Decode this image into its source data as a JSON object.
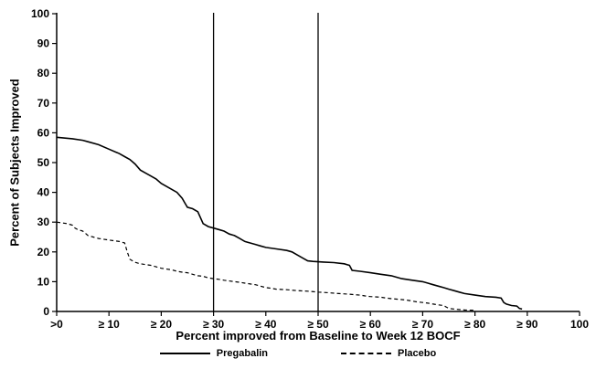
{
  "chart_data": {
    "type": "line",
    "title": "",
    "xlabel": "Percent improved from Baseline to Week 12 BOCF",
    "ylabel": "Percent of Subjects Improved",
    "xlim": [
      0,
      100
    ],
    "ylim": [
      0,
      100
    ],
    "grid": false,
    "legend_position": "bottom",
    "x_tick_values": [
      0,
      10,
      20,
      30,
      40,
      50,
      60,
      70,
      80,
      90,
      100
    ],
    "x_tick_labels": [
      ">0",
      "≥ 10",
      "≥ 20",
      "≥ 30",
      "≥ 40",
      "≥ 50",
      "≥ 60",
      "≥ 70",
      "≥ 80",
      "≥ 90",
      "100"
    ],
    "y_tick_values": [
      0,
      10,
      20,
      30,
      40,
      50,
      60,
      70,
      80,
      90,
      100
    ],
    "reference_lines_x": [
      30,
      50
    ],
    "axis_color": "#000000",
    "series": [
      {
        "name": "Pregabalin",
        "style": "solid",
        "color": "#000000",
        "points": [
          [
            0,
            58.5
          ],
          [
            3,
            58
          ],
          [
            5,
            57.5
          ],
          [
            6,
            57
          ],
          [
            8,
            56
          ],
          [
            10,
            54.5
          ],
          [
            12,
            53
          ],
          [
            13,
            52
          ],
          [
            14,
            51
          ],
          [
            15,
            49.5
          ],
          [
            16,
            47.5
          ],
          [
            17,
            46.5
          ],
          [
            18,
            45.5
          ],
          [
            19,
            44.5
          ],
          [
            20,
            43
          ],
          [
            21,
            42
          ],
          [
            22,
            41
          ],
          [
            23,
            40
          ],
          [
            24,
            38
          ],
          [
            24.5,
            36.5
          ],
          [
            25,
            35
          ],
          [
            26,
            34.5
          ],
          [
            27,
            33.5
          ],
          [
            27.5,
            31.5
          ],
          [
            28,
            29.5
          ],
          [
            29,
            28.5
          ],
          [
            30,
            28
          ],
          [
            31,
            27.5
          ],
          [
            32,
            27
          ],
          [
            33,
            26
          ],
          [
            34,
            25.5
          ],
          [
            35,
            24.5
          ],
          [
            36,
            23.5
          ],
          [
            37,
            23
          ],
          [
            38,
            22.5
          ],
          [
            39,
            22
          ],
          [
            40,
            21.5
          ],
          [
            42,
            21
          ],
          [
            44,
            20.5
          ],
          [
            45,
            20
          ],
          [
            46,
            19
          ],
          [
            47,
            18
          ],
          [
            48,
            17
          ],
          [
            49,
            16.8
          ],
          [
            51,
            16.6
          ],
          [
            53,
            16.4
          ],
          [
            55,
            16
          ],
          [
            56,
            15.5
          ],
          [
            56.5,
            13.8
          ],
          [
            58,
            13.5
          ],
          [
            60,
            13
          ],
          [
            62,
            12.5
          ],
          [
            64,
            12
          ],
          [
            65,
            11.5
          ],
          [
            66,
            11
          ],
          [
            68,
            10.5
          ],
          [
            70,
            10
          ],
          [
            71,
            9.5
          ],
          [
            72,
            9
          ],
          [
            73,
            8.5
          ],
          [
            74,
            8
          ],
          [
            75,
            7.5
          ],
          [
            76,
            7
          ],
          [
            77,
            6.5
          ],
          [
            78,
            6
          ],
          [
            80,
            5.5
          ],
          [
            82,
            5
          ],
          [
            84,
            4.8
          ],
          [
            85,
            4.5
          ],
          [
            85.5,
            3
          ],
          [
            86,
            2.5
          ],
          [
            87,
            2
          ],
          [
            88,
            1.8
          ],
          [
            88.5,
            1
          ],
          [
            89,
            0.8
          ]
        ]
      },
      {
        "name": "Placebo",
        "style": "dashed",
        "color": "#000000",
        "points": [
          [
            0,
            30
          ],
          [
            2,
            29.5
          ],
          [
            3,
            29
          ],
          [
            3.5,
            28
          ],
          [
            4,
            27.5
          ],
          [
            5,
            27
          ],
          [
            6,
            25.5
          ],
          [
            7,
            25
          ],
          [
            8,
            24.5
          ],
          [
            10,
            24
          ],
          [
            12,
            23.5
          ],
          [
            13,
            23
          ],
          [
            13.5,
            20
          ],
          [
            14,
            17.5
          ],
          [
            15,
            16.5
          ],
          [
            16,
            16
          ],
          [
            18,
            15.5
          ],
          [
            19,
            15
          ],
          [
            20,
            14.5
          ],
          [
            22,
            14
          ],
          [
            23,
            13.5
          ],
          [
            24,
            13.2
          ],
          [
            25,
            13
          ],
          [
            26,
            12.5
          ],
          [
            27,
            12
          ],
          [
            28,
            11.8
          ],
          [
            29,
            11.3
          ],
          [
            30,
            11
          ],
          [
            31,
            10.8
          ],
          [
            32,
            10.5
          ],
          [
            34,
            10
          ],
          [
            35,
            9.8
          ],
          [
            36,
            9.5
          ],
          [
            38,
            9
          ],
          [
            39,
            8.5
          ],
          [
            40,
            8
          ],
          [
            41,
            7.8
          ],
          [
            42,
            7.5
          ],
          [
            44,
            7.3
          ],
          [
            46,
            7
          ],
          [
            48,
            6.8
          ],
          [
            50,
            6.5
          ],
          [
            52,
            6.3
          ],
          [
            54,
            6
          ],
          [
            56,
            5.8
          ],
          [
            58,
            5.5
          ],
          [
            59,
            5.2
          ],
          [
            60,
            5
          ],
          [
            62,
            4.8
          ],
          [
            63,
            4.5
          ],
          [
            64,
            4.3
          ],
          [
            66,
            4
          ],
          [
            67,
            3.8
          ],
          [
            68,
            3.5
          ],
          [
            69,
            3.2
          ],
          [
            70,
            3
          ],
          [
            71,
            2.8
          ],
          [
            72,
            2.5
          ],
          [
            73,
            2.2
          ],
          [
            74,
            2
          ],
          [
            74.5,
            1.5
          ],
          [
            75,
            1
          ],
          [
            76,
            0.8
          ],
          [
            78,
            0.5
          ],
          [
            80,
            0.4
          ]
        ]
      }
    ]
  }
}
